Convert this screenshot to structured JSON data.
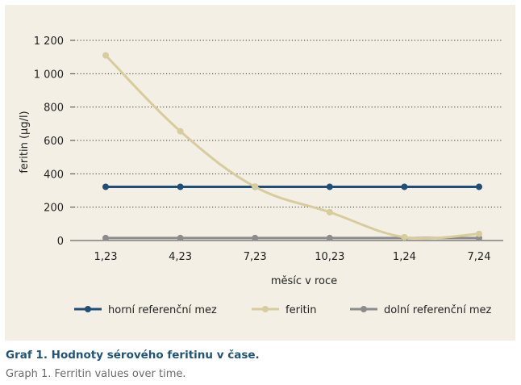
{
  "caption": {
    "title": "Graf 1. Hodnoty sérového feritinu v čase.",
    "subtitle": "Graph 1. Ferritin values over time."
  },
  "chart_data": {
    "type": "line",
    "xlabel": "měsíc v roce",
    "ylabel": "feritin (µg/l)",
    "ylim": [
      0,
      1200
    ],
    "yticks": [
      0,
      200,
      400,
      600,
      800,
      1000,
      1200
    ],
    "ytick_labels": [
      "0",
      "200",
      "400",
      "600",
      "800",
      "1 000",
      "1 200"
    ],
    "categories": [
      "1,23",
      "4,23",
      "7,23",
      "10,23",
      "1,24",
      "7,24"
    ],
    "grid": "horizontal dotted",
    "legend_position": "bottom",
    "series": [
      {
        "name": "horní referenční mez",
        "color": "#1f4e79",
        "values": [
          322,
          322,
          322,
          322,
          322,
          322
        ]
      },
      {
        "name": "feritin",
        "color": "#d8cc9c",
        "values": [
          1110,
          655,
          322,
          170,
          20,
          40
        ]
      },
      {
        "name": "dolní referenční mez",
        "color": "#8c8c8c",
        "values": [
          15,
          15,
          15,
          15,
          15,
          15
        ]
      }
    ]
  }
}
